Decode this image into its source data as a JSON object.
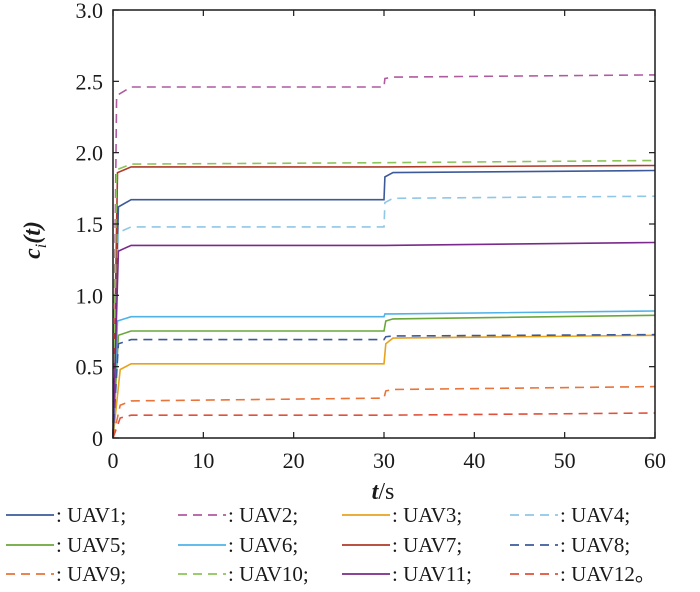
{
  "chart_data": {
    "type": "line",
    "title": "",
    "xlabel_var": "t",
    "xlabel_unit": "/s",
    "ylabel_var": "c",
    "ylabel_sub": "i",
    "ylabel_arg": "(t)",
    "xlim": [
      0,
      60
    ],
    "ylim": [
      0,
      3
    ],
    "xticks": [
      "0",
      "10",
      "20",
      "30",
      "40",
      "50",
      "60"
    ],
    "yticks": [
      "0",
      "0.5",
      "1.0",
      "1.5",
      "2.0",
      "2.5",
      "3.0"
    ],
    "grid": false,
    "legend_position": "bottom",
    "series": [
      {
        "name": ": UAV1;",
        "legend": ": UAV1;",
        "color": "#3c5a9a",
        "dash": false,
        "points": [
          [
            0,
            0
          ],
          [
            0.6,
            1.62
          ],
          [
            2,
            1.67
          ],
          [
            30,
            1.67
          ],
          [
            30.1,
            1.83
          ],
          [
            31,
            1.86
          ],
          [
            60,
            1.875
          ]
        ]
      },
      {
        "name": ": UAV2;",
        "legend": ": UAV2;",
        "color": "#b05aa0",
        "dash": true,
        "points": [
          [
            0,
            0
          ],
          [
            0.4,
            2.4
          ],
          [
            2,
            2.46
          ],
          [
            30,
            2.46
          ],
          [
            30.1,
            2.52
          ],
          [
            31,
            2.53
          ],
          [
            60,
            2.545
          ]
        ]
      },
      {
        "name": ": UAV3;",
        "legend": ": UAV3;",
        "color": "#e8a21e",
        "dash": false,
        "points": [
          [
            0,
            0
          ],
          [
            0.8,
            0.48
          ],
          [
            2,
            0.52
          ],
          [
            30,
            0.52
          ],
          [
            30.2,
            0.66
          ],
          [
            31,
            0.7
          ],
          [
            60,
            0.72
          ]
        ]
      },
      {
        "name": ": UAV4;",
        "legend": ": UAV4;",
        "color": "#8fc8e6",
        "dash": true,
        "points": [
          [
            0,
            0
          ],
          [
            0.6,
            1.44
          ],
          [
            2,
            1.48
          ],
          [
            30,
            1.48
          ],
          [
            30.1,
            1.65
          ],
          [
            31,
            1.68
          ],
          [
            60,
            1.695
          ]
        ]
      },
      {
        "name": ": UAV5;",
        "legend": ": UAV5;",
        "color": "#69a73a",
        "dash": false,
        "points": [
          [
            0,
            0
          ],
          [
            0.6,
            0.72
          ],
          [
            2,
            0.75
          ],
          [
            30,
            0.75
          ],
          [
            30.2,
            0.82
          ],
          [
            31,
            0.835
          ],
          [
            60,
            0.86
          ]
        ]
      },
      {
        "name": ": UAV6;",
        "legend": ": UAV6;",
        "color": "#4fb2e8",
        "dash": false,
        "points": [
          [
            0,
            0
          ],
          [
            0.5,
            0.82
          ],
          [
            2,
            0.85
          ],
          [
            30,
            0.85
          ],
          [
            30.1,
            0.87
          ],
          [
            31,
            0.87
          ],
          [
            60,
            0.89
          ]
        ]
      },
      {
        "name": ": UAV7;",
        "legend": ": UAV7;",
        "color": "#b03a2a",
        "dash": false,
        "points": [
          [
            0,
            0
          ],
          [
            0.5,
            1.86
          ],
          [
            2,
            1.9
          ],
          [
            30,
            1.9
          ],
          [
            60,
            1.91
          ]
        ]
      },
      {
        "name": ": UAV8;",
        "legend": ": UAV8;",
        "color": "#3c5a9a",
        "dash": true,
        "points": [
          [
            0,
            0
          ],
          [
            0.6,
            0.66
          ],
          [
            2,
            0.69
          ],
          [
            30,
            0.69
          ],
          [
            30.2,
            0.71
          ],
          [
            31,
            0.715
          ],
          [
            60,
            0.725
          ]
        ]
      },
      {
        "name": ": UAV9;",
        "legend": ": UAV9;",
        "color": "#e8743a",
        "dash": true,
        "points": [
          [
            0,
            0
          ],
          [
            0.8,
            0.23
          ],
          [
            2,
            0.26
          ],
          [
            30,
            0.28
          ],
          [
            30.2,
            0.33
          ],
          [
            31,
            0.34
          ],
          [
            60,
            0.36
          ]
        ]
      },
      {
        "name": ": UAV10;",
        "legend": ": UAV10;",
        "color": "#8cc45a",
        "dash": true,
        "points": [
          [
            0,
            0
          ],
          [
            0.4,
            1.88
          ],
          [
            2,
            1.92
          ],
          [
            30,
            1.93
          ],
          [
            60,
            1.945
          ]
        ]
      },
      {
        "name": ": UAV11;",
        "legend": ": UAV11;",
        "color": "#7a2a8a",
        "dash": false,
        "points": [
          [
            0,
            0
          ],
          [
            0.6,
            1.31
          ],
          [
            2,
            1.35
          ],
          [
            30,
            1.35
          ],
          [
            60,
            1.37
          ]
        ]
      },
      {
        "name": ": UAV12。",
        "legend": ": UAV12。",
        "color": "#e0503a",
        "dash": true,
        "points": [
          [
            0,
            0
          ],
          [
            0.8,
            0.14
          ],
          [
            2,
            0.16
          ],
          [
            30,
            0.16
          ],
          [
            60,
            0.175
          ]
        ]
      }
    ]
  }
}
